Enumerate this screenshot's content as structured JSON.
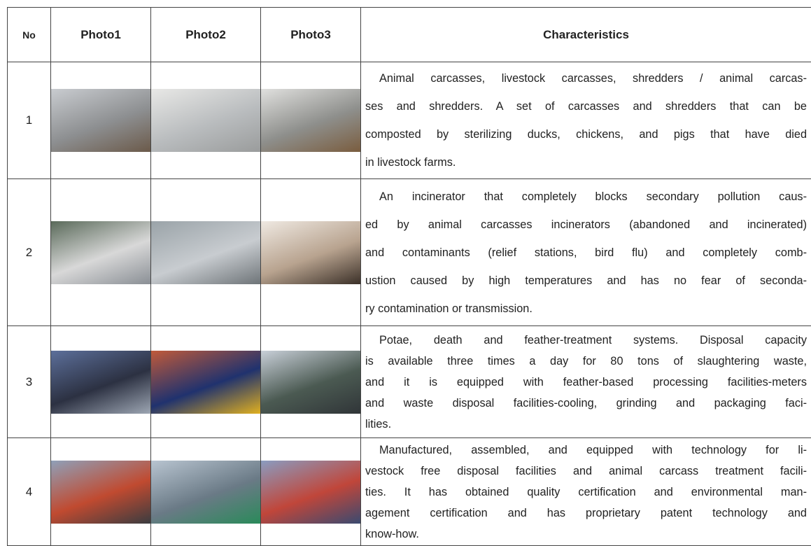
{
  "table": {
    "header": [
      "No",
      "Photo1",
      "Photo2",
      "Photo3",
      "Characteristics"
    ],
    "rows": [
      {
        "no": "1",
        "lines": [
          "Animal carcasses, livestock carcasses, shredders / animal carcas-",
          "ses and shredders. A set of carcasses and shredders that can be",
          "composted by sterilizing ducks, chickens, and pigs that have died",
          "in livestock farms."
        ]
      },
      {
        "no": "2",
        "lines": [
          "An incinerator that completely blocks secondary pollution caus-",
          "ed by animal carcasses incinerators (abandoned and incinerated)",
          "and contaminants (relief stations, bird flu) and completely comb-",
          "ustion caused by high temperatures and has no fear of seconda-",
          "ry contamination or transmission."
        ]
      },
      {
        "no": "3",
        "lines": [
          "Potae, death and feather-treatment systems. Disposal capacity",
          "is available three times a day for 80 tons of slaughtering waste,",
          "and it is equipped with feather-based processing facilities-meters",
          "and waste disposal facilities-cooling, grinding and packaging faci-",
          "lities."
        ]
      },
      {
        "no": "4",
        "lines": [
          "Manufactured, assembled, and equipped with technology for li-",
          "vestock free disposal facilities and animal carcass treatment facili-",
          "ties. It has obtained quality certification and environmental man-",
          "agement certification and has proprietary patent technology and",
          "know-how."
        ]
      }
    ]
  }
}
